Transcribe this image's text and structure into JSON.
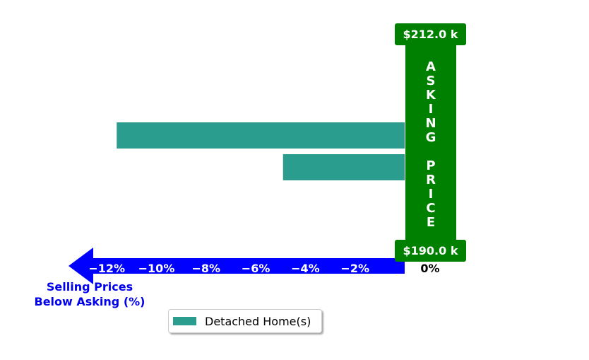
{
  "chart_data": {
    "type": "bar",
    "orientation": "horizontal",
    "series": [
      {
        "name": "Detached Home(s)",
        "values": [
          -11.6,
          -4.9
        ]
      }
    ],
    "xlabel": "Selling Prices\nBelow Asking (%)",
    "xticks": [
      -12,
      -10,
      -8,
      -6,
      -4,
      -2,
      0
    ],
    "xtick_labels": [
      "−12%",
      "−10%",
      "−8%",
      "−6%",
      "−4%",
      "−2%",
      "0%"
    ],
    "xlim": [
      -13.5,
      2.2
    ],
    "asking_price_label": "ASKING PRICE",
    "price_top": "$212.0 k",
    "price_bottom": "$190.0 k",
    "legend_position": "bottom-center"
  },
  "colors": {
    "bar": "#2a9d8f",
    "arrow": "#0000ff",
    "asking_bar": "#008000",
    "axis_text_on_arrow": "#ffffff",
    "zero_label": "#000000"
  },
  "legend": {
    "label": "Detached Home(s)"
  }
}
